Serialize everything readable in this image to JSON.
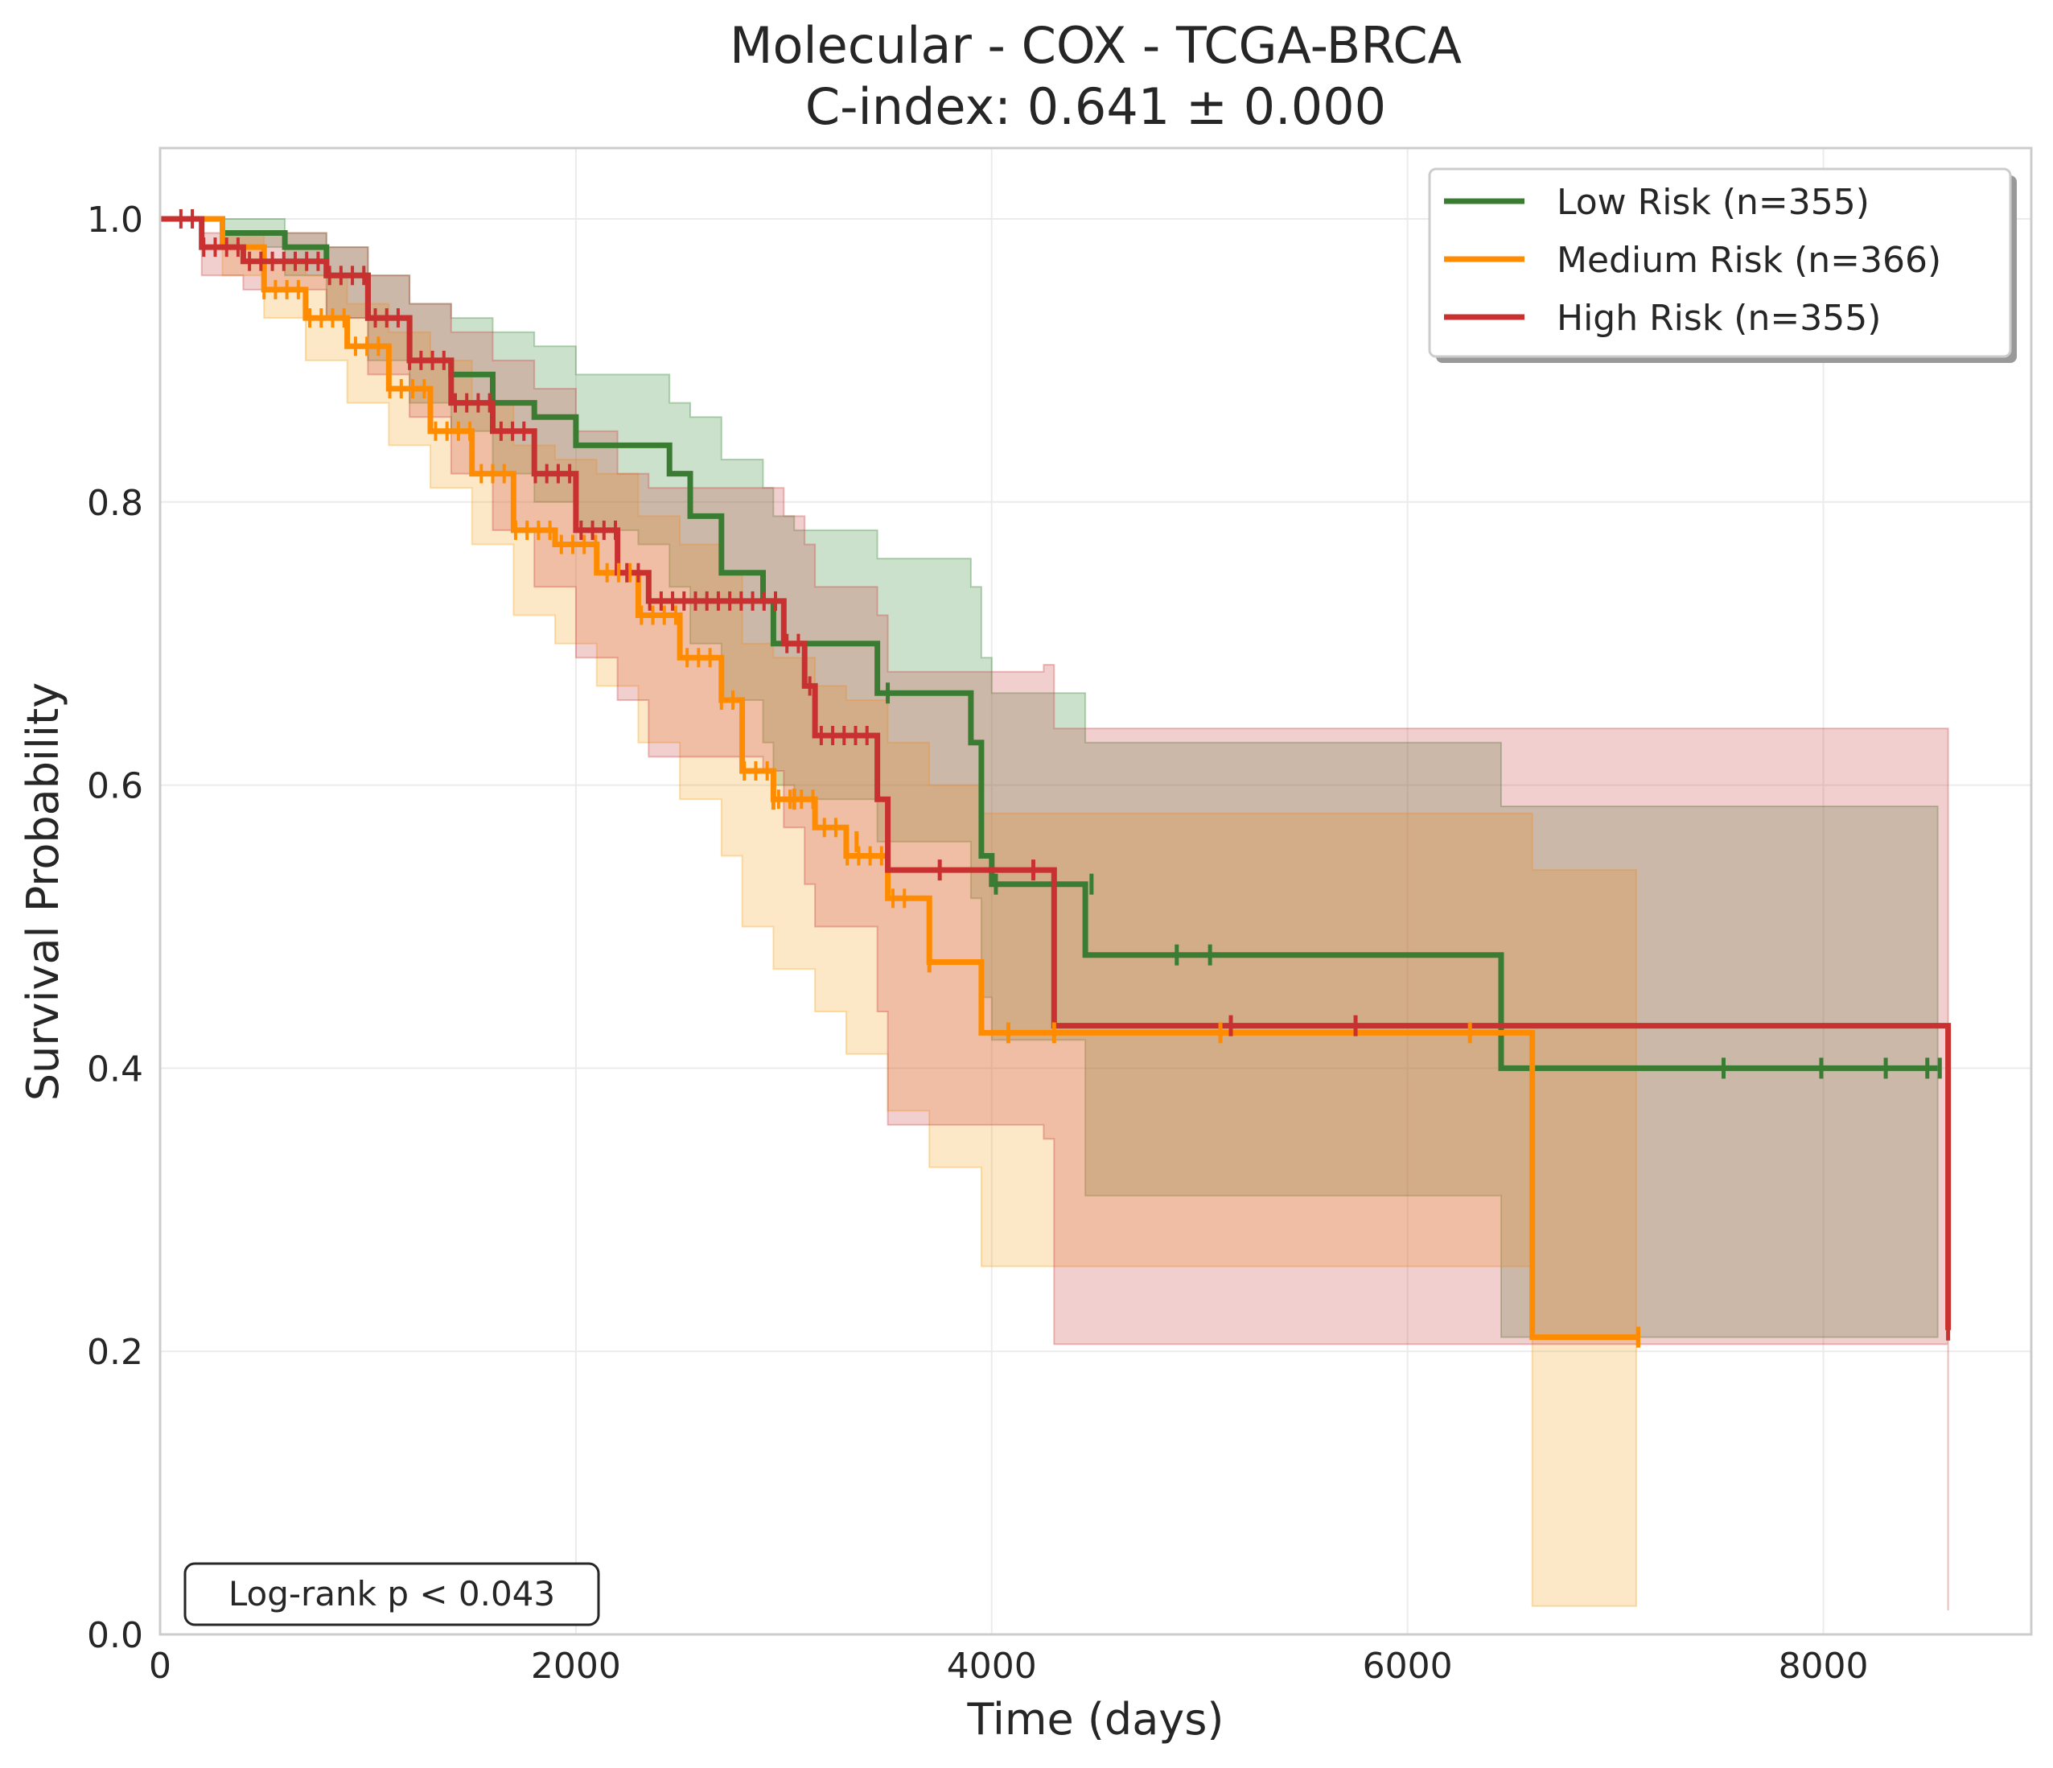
{
  "chart_data": {
    "type": "line",
    "subtype": "kaplan-meier step survival curves with confidence bands",
    "title_line1": "Molecular - COX - TCGA-BRCA",
    "title_line2": "C-index: 0.641 ± 0.000",
    "xlabel": "Time (days)",
    "ylabel": "Survival Probability",
    "xlim": [
      0,
      9000
    ],
    "ylim": [
      0,
      1.05
    ],
    "xticks": [
      0,
      2000,
      4000,
      6000,
      8000
    ],
    "xtick_labels": [
      "0",
      "2000",
      "4000",
      "6000",
      "8000"
    ],
    "yticks": [
      0.0,
      0.2,
      0.4,
      0.6,
      0.8,
      1.0
    ],
    "ytick_labels": [
      "0.0",
      "0.2",
      "0.4",
      "0.6",
      "0.8",
      "1.0"
    ],
    "grid": true,
    "legend_position": "top-right",
    "annotation": "Log-rank p < 0.043",
    "series": [
      {
        "name": "Low Risk (n=355)",
        "color": "#3a7d32",
        "band_color": "#3a8a3a",
        "x": [
          0,
          300,
          600,
          800,
          1000,
          1200,
          1400,
          1600,
          1800,
          2000,
          2300,
          2450,
          2550,
          2700,
          2900,
          2950,
          3050,
          3450,
          3900,
          3950,
          4000,
          4450,
          6450,
          8550
        ],
        "y": [
          1.0,
          0.99,
          0.98,
          0.96,
          0.93,
          0.9,
          0.89,
          0.87,
          0.86,
          0.84,
          0.84,
          0.82,
          0.79,
          0.75,
          0.73,
          0.7,
          0.7,
          0.665,
          0.63,
          0.55,
          0.53,
          0.48,
          0.4,
          0.4
        ],
        "lower": [
          1.0,
          0.98,
          0.96,
          0.93,
          0.9,
          0.87,
          0.85,
          0.82,
          0.8,
          0.78,
          0.77,
          0.74,
          0.7,
          0.66,
          0.63,
          0.6,
          0.59,
          0.56,
          0.52,
          0.45,
          0.42,
          0.31,
          0.21,
          0.21
        ],
        "upper": [
          1.0,
          1.0,
          0.99,
          0.98,
          0.96,
          0.94,
          0.93,
          0.92,
          0.91,
          0.89,
          0.89,
          0.87,
          0.86,
          0.83,
          0.81,
          0.79,
          0.78,
          0.76,
          0.74,
          0.69,
          0.665,
          0.63,
          0.585,
          0.585
        ],
        "censor_x": [
          3500,
          4020,
          4480,
          4890,
          5050,
          7520,
          7990,
          8300,
          8500,
          8560
        ],
        "censor_y": [
          0.665,
          0.53,
          0.53,
          0.48,
          0.48,
          0.4,
          0.4,
          0.4,
          0.4,
          0.4
        ]
      },
      {
        "name": "Medium Risk (n=366)",
        "color": "#ff8c00",
        "band_color": "#f5a623",
        "x": [
          0,
          300,
          500,
          700,
          900,
          1100,
          1300,
          1500,
          1700,
          1900,
          2100,
          2300,
          2500,
          2700,
          2800,
          2950,
          3150,
          3300,
          3500,
          3700,
          3950,
          6600,
          7100
        ],
        "y": [
          1.0,
          0.98,
          0.95,
          0.93,
          0.91,
          0.88,
          0.85,
          0.82,
          0.78,
          0.77,
          0.75,
          0.72,
          0.69,
          0.66,
          0.61,
          0.59,
          0.57,
          0.55,
          0.52,
          0.475,
          0.425,
          0.21,
          0.21
        ],
        "lower": [
          1.0,
          0.96,
          0.93,
          0.9,
          0.87,
          0.84,
          0.81,
          0.77,
          0.72,
          0.7,
          0.67,
          0.63,
          0.59,
          0.55,
          0.5,
          0.47,
          0.44,
          0.41,
          0.37,
          0.33,
          0.26,
          0.02,
          0.02
        ],
        "upper": [
          1.0,
          0.99,
          0.97,
          0.96,
          0.94,
          0.92,
          0.9,
          0.87,
          0.84,
          0.83,
          0.82,
          0.79,
          0.77,
          0.75,
          0.7,
          0.69,
          0.67,
          0.66,
          0.63,
          0.6,
          0.58,
          0.54,
          0.54
        ],
        "censor_x": [
          2950,
          3050,
          3350,
          3700,
          4080,
          4300,
          5100,
          6300,
          7110
        ],
        "censor_y": [
          0.59,
          0.59,
          0.56,
          0.475,
          0.425,
          0.425,
          0.425,
          0.425,
          0.21
        ],
        "dense_censor_range": [
          500,
          3600
        ]
      },
      {
        "name": "High Risk (n=355)",
        "color": "#c93030",
        "band_color": "#cc4444",
        "x": [
          0,
          200,
          400,
          800,
          1000,
          1200,
          1400,
          1600,
          1800,
          2000,
          2200,
          2350,
          2900,
          3000,
          3100,
          3150,
          3450,
          3500,
          4250,
          4300,
          7450,
          8600
        ],
        "y": [
          1.0,
          0.98,
          0.97,
          0.96,
          0.93,
          0.9,
          0.87,
          0.85,
          0.82,
          0.78,
          0.75,
          0.73,
          0.73,
          0.7,
          0.67,
          0.635,
          0.59,
          0.54,
          0.54,
          0.43,
          0.43,
          0.215
        ],
        "lower": [
          1.0,
          0.96,
          0.95,
          0.93,
          0.89,
          0.86,
          0.82,
          0.78,
          0.74,
          0.69,
          0.66,
          0.62,
          0.61,
          0.57,
          0.53,
          0.5,
          0.44,
          0.36,
          0.35,
          0.205,
          0.205,
          0.017
        ],
        "upper": [
          1.0,
          0.99,
          0.99,
          0.98,
          0.96,
          0.94,
          0.92,
          0.9,
          0.88,
          0.85,
          0.82,
          0.81,
          0.81,
          0.79,
          0.77,
          0.74,
          0.72,
          0.68,
          0.685,
          0.64,
          0.64,
          0.555
        ],
        "censor_x": [
          3750,
          4200,
          5150,
          5750,
          8600
        ],
        "censor_y": [
          0.54,
          0.54,
          0.43,
          0.43,
          0.215
        ],
        "dense_censor_range": [
          100,
          3400
        ]
      }
    ]
  }
}
